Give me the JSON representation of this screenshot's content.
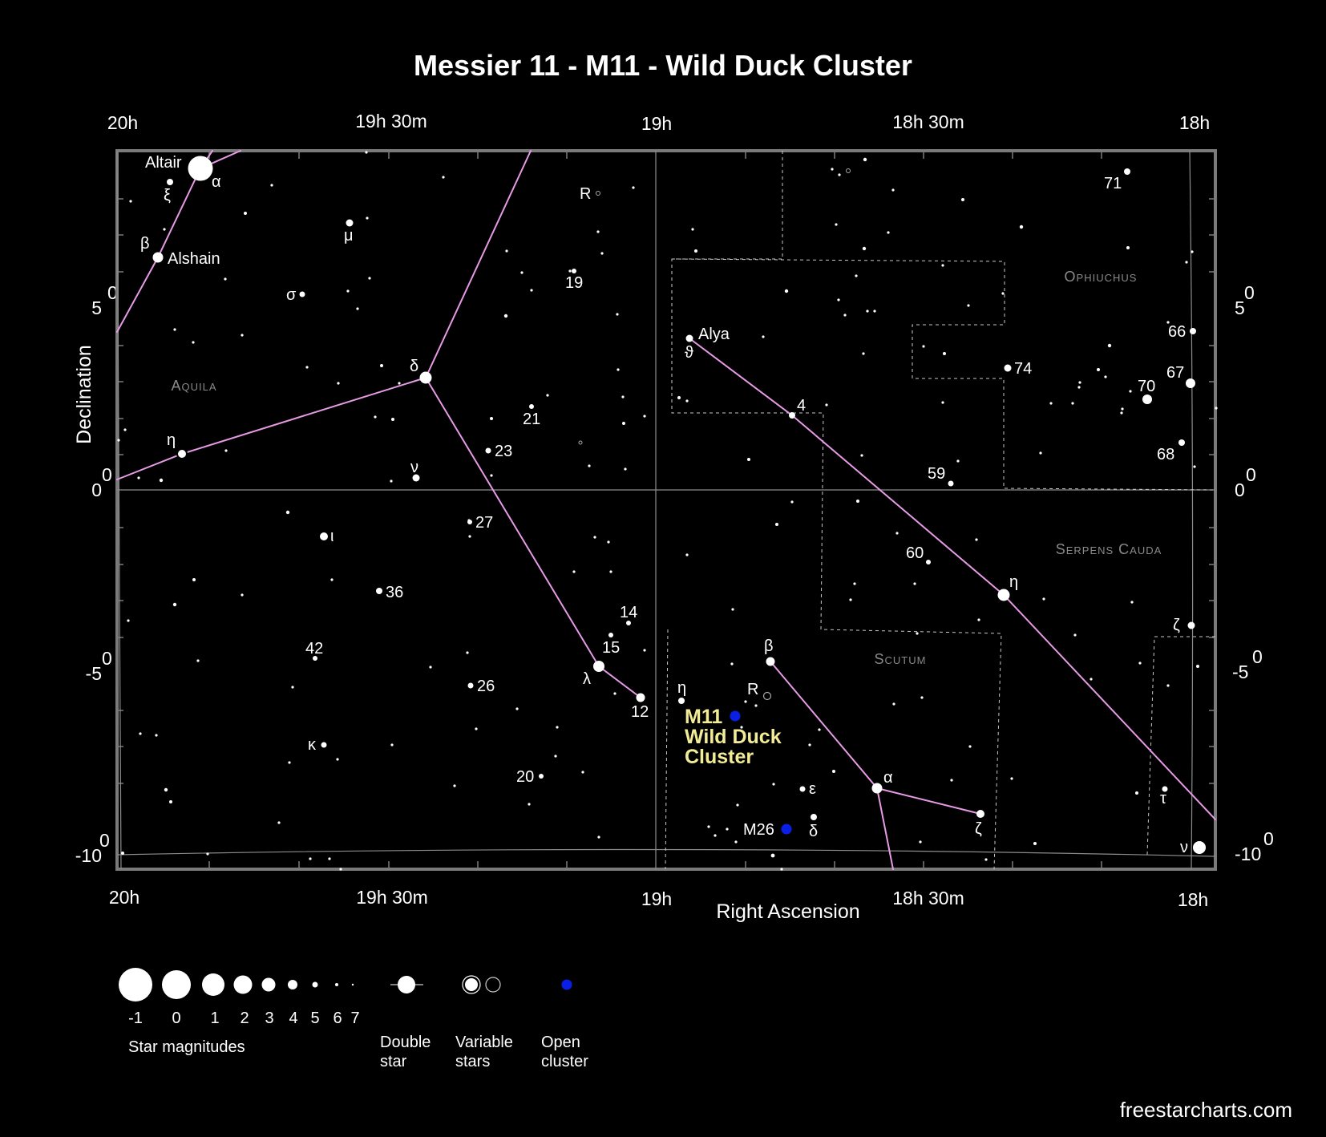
{
  "title": "Messier 11 - M11 - Wild Duck Cluster",
  "axes": {
    "x_title": "Right Ascension",
    "y_title": "Declination",
    "ra_ticks": [
      "20h",
      "19h 30m",
      "19h",
      "18h 30m",
      "18h"
    ],
    "dec_ticks": [
      "5",
      "0",
      "-5",
      "-10"
    ],
    "degree_mark": "0"
  },
  "constellations": [
    {
      "key": "aquila",
      "name": "Aquila"
    },
    {
      "key": "ophiuchus",
      "name": "Ophiuchus"
    },
    {
      "key": "serpens",
      "name": "Serpens Cauda"
    },
    {
      "key": "scutum",
      "name": "Scutum"
    }
  ],
  "target": {
    "line1": "M11",
    "line2": "Wild Duck",
    "line3": "Cluster",
    "color": "#f2ec94",
    "marker_color": "#0a1fe6"
  },
  "labels": {
    "altair": "Altair",
    "alpha_aql": "α",
    "xi": "ξ",
    "beta_aql": "β",
    "alshain": "Alshain",
    "mu": "μ",
    "sigma": "σ",
    "delta_aql": "δ",
    "eta_aql": "η",
    "nu_aql": "ν",
    "iota": "ι",
    "n36": "36",
    "n42": "42",
    "kappa": "κ",
    "n26": "26",
    "n27": "27",
    "n23": "23",
    "n21": "21",
    "n19": "19",
    "r_aql": "R",
    "n14": "14",
    "n15": "15",
    "lambda": "λ",
    "n12": "12",
    "n20": "20",
    "alya": "Alya",
    "theta": "ϑ",
    "n4": "4",
    "n59": "59",
    "n60": "60",
    "eta_ser": "η",
    "n74": "74",
    "n71": "71",
    "n66": "66",
    "n67": "67",
    "n70": "70",
    "n68": "68",
    "zeta_ser": "ζ",
    "tau": "τ",
    "nu_ser": "ν",
    "beta_sct": "β",
    "r_sct": "R",
    "eta_sct": "η",
    "alpha_sct": "α",
    "epsilon": "ε",
    "delta_sct": "δ",
    "zeta_sct": "ζ",
    "m26": "M26"
  },
  "legend": {
    "magnitudes": [
      "-1",
      "0",
      "1",
      "2",
      "3",
      "4",
      "5",
      "6",
      "7"
    ],
    "magnitudes_title": "Star magnitudes",
    "double_line1": "Double",
    "double_line2": "star",
    "variable_line1": "Variable",
    "variable_line2": "stars",
    "open_line1": "Open",
    "open_line2": "cluster"
  },
  "credit": "freestarcharts.com",
  "colors": {
    "background": "#000000",
    "frame": "#7a7a7a",
    "constellation_line": "#e79be6",
    "grid": "#8c8c8c",
    "open_cluster": "#0a1fe6"
  }
}
